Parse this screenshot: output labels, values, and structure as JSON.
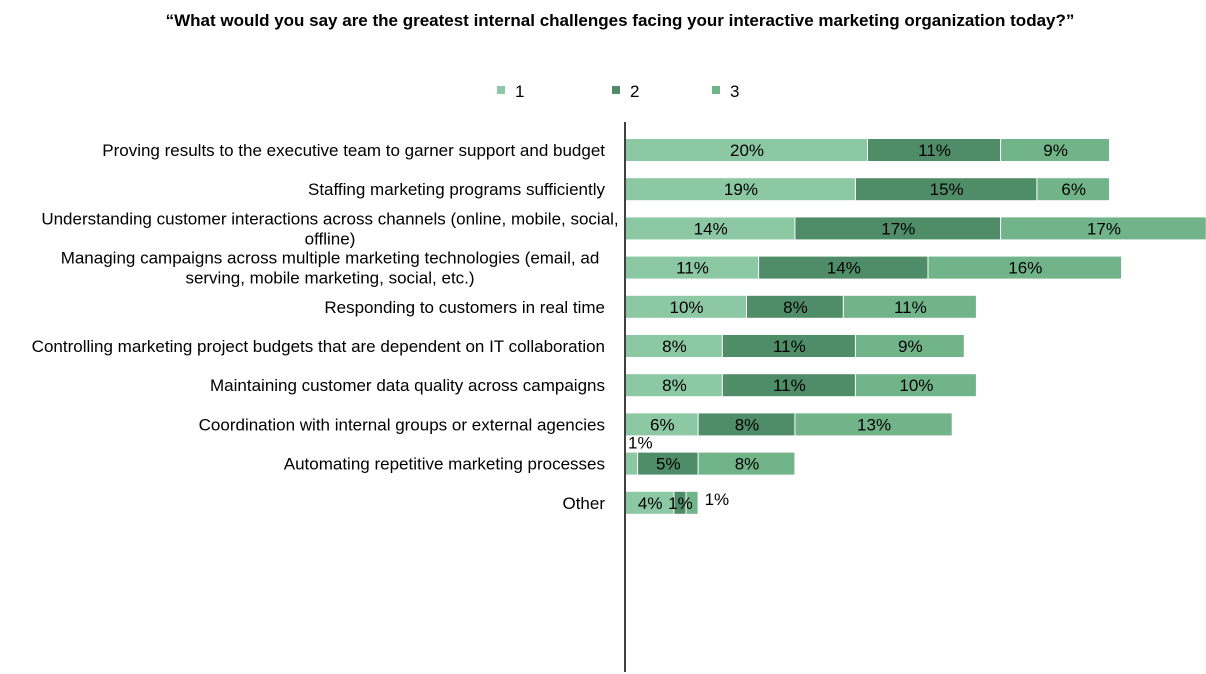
{
  "chart_data": {
    "type": "bar",
    "orientation": "horizontal",
    "stacked": true,
    "title": "“What would you say are the greatest internal challenges facing your interactive marketing organization today?”",
    "legend": {
      "placement": "top"
    },
    "categories": [
      "Proving results to the executive team to garner support and budget",
      "Staffing marketing programs sufficiently",
      "Understanding customer interactions across channels (online, mobile, social, offline)",
      "Managing campaigns across multiple marketing technologies (email, ad serving, mobile marketing, social, etc.)",
      "Responding to customers in real time",
      "Controlling marketing project budgets that are dependent on IT collaboration",
      "Maintaining customer data quality across campaigns",
      "Coordination with internal groups or external agencies",
      "Automating repetitive marketing processes",
      "Other"
    ],
    "series": [
      {
        "name": "1",
        "color": "#8cc8a4",
        "values": [
          20,
          19,
          14,
          11,
          10,
          8,
          8,
          6,
          1,
          4
        ]
      },
      {
        "name": "2",
        "color": "#4f8d69",
        "values": [
          11,
          15,
          17,
          14,
          8,
          11,
          11,
          8,
          5,
          1
        ]
      },
      {
        "name": "3",
        "color": "#72b48a",
        "values": [
          9,
          6,
          17,
          16,
          11,
          9,
          10,
          13,
          8,
          1
        ]
      }
    ],
    "value_suffix": "%",
    "grid": false
  }
}
